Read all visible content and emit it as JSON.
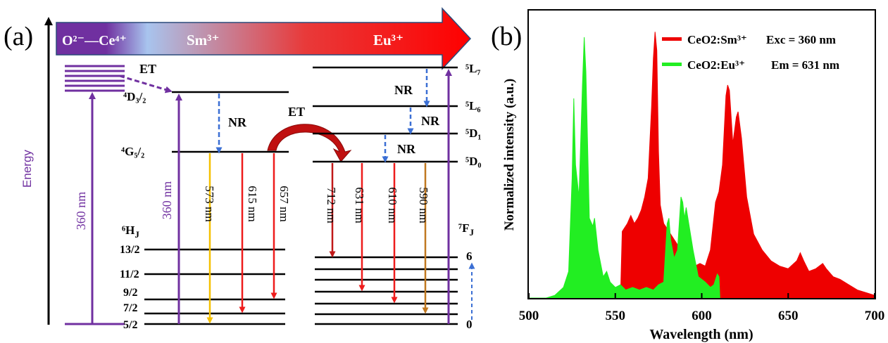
{
  "panel_a": {
    "panel_label": "(a)",
    "energy_axis_label": "Energy",
    "banner": {
      "o_ce": "O²⁻—Ce⁴⁺",
      "sm": "Sm³⁺",
      "eu": "Eu³⁺"
    },
    "et_label_1": "ET",
    "et_label_2": "ET",
    "nr_labels": [
      "NR",
      "NR",
      "NR",
      "NR"
    ],
    "sm_levels": {
      "D32": "⁴D₃/₂",
      "G52": "⁴G₅/₂",
      "HJ": "⁶H",
      "HJ_sub": "J",
      "sublevels": [
        "13/2",
        "11/2",
        "9/2",
        "7/2",
        "5/2"
      ]
    },
    "eu_levels": {
      "L7": "⁵L₇",
      "L6": "⁵L₆",
      "D1": "⁵D₁",
      "D0": "⁵D₀",
      "FJ": "⁷F",
      "FJ_sub": "J",
      "top": "6",
      "bottom": "0"
    },
    "excitation_labels": [
      "360 nm",
      "360 nm"
    ],
    "sm_emissions": [
      "573 nm",
      "615 nm",
      "657 nm"
    ],
    "eu_emissions": [
      "712 nm",
      "631 nm",
      "610 nm",
      "590 nm"
    ],
    "colors": {
      "purple": "#7030a0",
      "red": "#ee1c1c",
      "green": "#00ee00",
      "yellow": "#f5c000",
      "orange": "#c07820",
      "nr_blue": "#3b6fd4",
      "banner_start": "#7030a0",
      "banner_mid": "#a8c4ee",
      "banner_end": "#ff0000"
    }
  },
  "panel_b": {
    "panel_label": "(b)",
    "chart_data": {
      "type": "area",
      "xlabel": "Wavelength (nm)",
      "ylabel": "Normalized intensity (a.u.)",
      "xlim": [
        500,
        700
      ],
      "ylim": [
        0,
        1.08
      ],
      "xticks": [
        "500",
        "550",
        "600",
        "650",
        "700"
      ],
      "legend": [
        {
          "name": "CeO2:Sm³⁺",
          "note": "Exc = 360 nm",
          "color": "#ee0000"
        },
        {
          "name": "CeO2:Eu³⁺",
          "note": "Em = 631 nm",
          "color": "#22ee22"
        }
      ],
      "legend_placement": "top-right",
      "series": [
        {
          "name": "CeO2:Sm³⁺",
          "color": "#ee0000",
          "points": [
            [
              553,
              0.0
            ],
            [
              554,
              0.25
            ],
            [
              557,
              0.28
            ],
            [
              559,
              0.31
            ],
            [
              561,
              0.28
            ],
            [
              563,
              0.3
            ],
            [
              565,
              0.33
            ],
            [
              567,
              0.38
            ],
            [
              569,
              0.45
            ],
            [
              571,
              0.72
            ],
            [
              572,
              0.9
            ],
            [
              573,
              1.0
            ],
            [
              574,
              0.93
            ],
            [
              575,
              0.55
            ],
            [
              576,
              0.35
            ],
            [
              578,
              0.28
            ],
            [
              581,
              0.25
            ],
            [
              584,
              0.22
            ],
            [
              588,
              0.18
            ],
            [
              592,
              0.14
            ],
            [
              596,
              0.12
            ],
            [
              599,
              0.13
            ],
            [
              602,
              0.12
            ],
            [
              605,
              0.18
            ],
            [
              608,
              0.36
            ],
            [
              610,
              0.4
            ],
            [
              612,
              0.5
            ],
            [
              614,
              0.76
            ],
            [
              615,
              0.8
            ],
            [
              616,
              0.78
            ],
            [
              618,
              0.58
            ],
            [
              620,
              0.68
            ],
            [
              621,
              0.7
            ],
            [
              623,
              0.6
            ],
            [
              626,
              0.38
            ],
            [
              630,
              0.24
            ],
            [
              635,
              0.18
            ],
            [
              640,
              0.14
            ],
            [
              645,
              0.12
            ],
            [
              650,
              0.11
            ],
            [
              655,
              0.14
            ],
            [
              657,
              0.17
            ],
            [
              659,
              0.14
            ],
            [
              662,
              0.1
            ],
            [
              666,
              0.11
            ],
            [
              670,
              0.13
            ],
            [
              672,
              0.11
            ],
            [
              676,
              0.08
            ],
            [
              680,
              0.07
            ],
            [
              685,
              0.05
            ],
            [
              690,
              0.03
            ],
            [
              695,
              0.02
            ],
            [
              700,
              0.01
            ]
          ]
        },
        {
          "name": "CeO2:Eu³⁺",
          "color": "#22ee22",
          "points": [
            [
              500,
              0.0
            ],
            [
              510,
              0.0
            ],
            [
              515,
              0.01
            ],
            [
              520,
              0.04
            ],
            [
              523,
              0.1
            ],
            [
              525,
              0.45
            ],
            [
              526,
              0.75
            ],
            [
              527,
              0.5
            ],
            [
              529,
              0.38
            ],
            [
              531,
              0.8
            ],
            [
              532,
              0.98
            ],
            [
              533,
              0.85
            ],
            [
              535,
              0.3
            ],
            [
              537,
              0.27
            ],
            [
              538,
              0.3
            ],
            [
              540,
              0.18
            ],
            [
              543,
              0.08
            ],
            [
              545,
              0.1
            ],
            [
              547,
              0.06
            ],
            [
              550,
              0.04
            ],
            [
              553,
              0.05
            ],
            [
              556,
              0.03
            ],
            [
              560,
              0.04
            ],
            [
              564,
              0.03
            ],
            [
              568,
              0.04
            ],
            [
              572,
              0.03
            ],
            [
              575,
              0.05
            ],
            [
              578,
              0.06
            ],
            [
              580,
              0.28
            ],
            [
              581,
              0.3
            ],
            [
              582,
              0.22
            ],
            [
              584,
              0.15
            ],
            [
              586,
              0.18
            ],
            [
              588,
              0.38
            ],
            [
              589,
              0.36
            ],
            [
              590,
              0.3
            ],
            [
              591,
              0.34
            ],
            [
              593,
              0.26
            ],
            [
              595,
              0.18
            ],
            [
              598,
              0.08
            ],
            [
              602,
              0.06
            ],
            [
              605,
              0.04
            ],
            [
              607,
              0.05
            ],
            [
              609,
              0.09
            ],
            [
              610,
              0.08
            ],
            [
              610.5,
              0.0
            ]
          ]
        }
      ]
    }
  }
}
